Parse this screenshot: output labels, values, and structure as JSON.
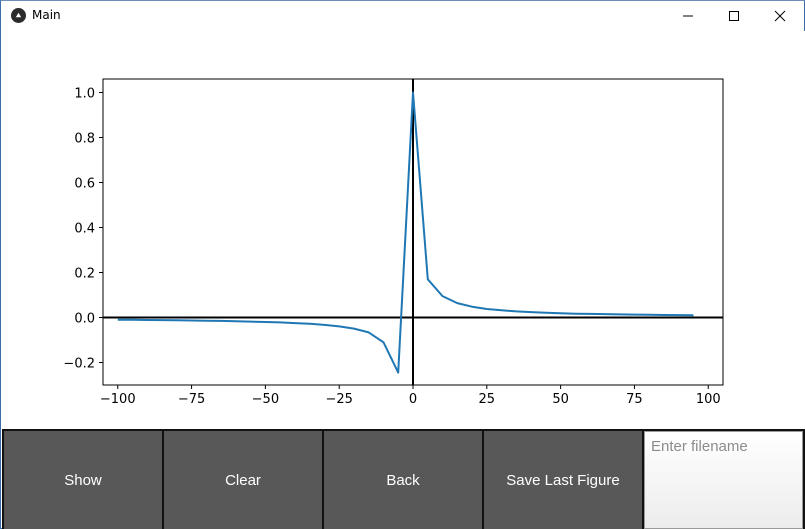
{
  "window": {
    "title": "Main",
    "icon": "kivy-app-icon",
    "controls": [
      "minimize-icon",
      "maximize-icon",
      "close-icon"
    ]
  },
  "chart_data": {
    "type": "line",
    "title": "",
    "xlabel": "",
    "ylabel": "",
    "xlim": [
      -105,
      105
    ],
    "ylim": [
      -0.3,
      1.06
    ],
    "xticks": [
      -100,
      -75,
      -50,
      -25,
      0,
      25,
      50,
      75,
      100
    ],
    "xtick_labels": [
      "−100",
      "−75",
      "−50",
      "−25",
      "0",
      "25",
      "50",
      "75",
      "100"
    ],
    "yticks": [
      -0.2,
      0.0,
      0.2,
      0.4,
      0.6,
      0.8,
      1.0
    ],
    "ytick_labels": [
      "−0.2",
      "0.0",
      "0.2",
      "0.4",
      "0.6",
      "0.8",
      "1.0"
    ],
    "grid": false,
    "axis_lines": true,
    "series_color": "#1f77b4",
    "series": [
      {
        "x": [
          -100,
          -95,
          -90,
          -85,
          -80,
          -75,
          -70,
          -65,
          -60,
          -55,
          -50,
          -45,
          -40,
          -35,
          -30,
          -25,
          -20,
          -15,
          -10,
          -5,
          0,
          5,
          10,
          15,
          20,
          25,
          30,
          35,
          40,
          45,
          50,
          55,
          60,
          65,
          70,
          75,
          80,
          85,
          90,
          95
        ],
        "y": [
          -0.0099,
          -0.0104,
          -0.0109,
          -0.0116,
          -0.0123,
          -0.0132,
          -0.0141,
          -0.0152,
          -0.0165,
          -0.018,
          -0.0198,
          -0.022,
          -0.0247,
          -0.0282,
          -0.033,
          -0.0396,
          -0.0495,
          -0.066,
          -0.11,
          -0.245,
          1.0,
          0.17,
          0.095,
          0.064,
          0.048,
          0.038,
          0.032,
          0.027,
          0.024,
          0.021,
          0.019,
          0.017,
          0.016,
          0.015,
          0.014,
          0.013,
          0.012,
          0.011,
          0.0105,
          0.01
        ]
      }
    ]
  },
  "toolbar": {
    "show_label": "Show",
    "clear_label": "Clear",
    "back_label": "Back",
    "save_label": "Save Last Figure",
    "filename_placeholder": "Enter filename",
    "filename_value": "",
    "button_color": "#585858"
  }
}
